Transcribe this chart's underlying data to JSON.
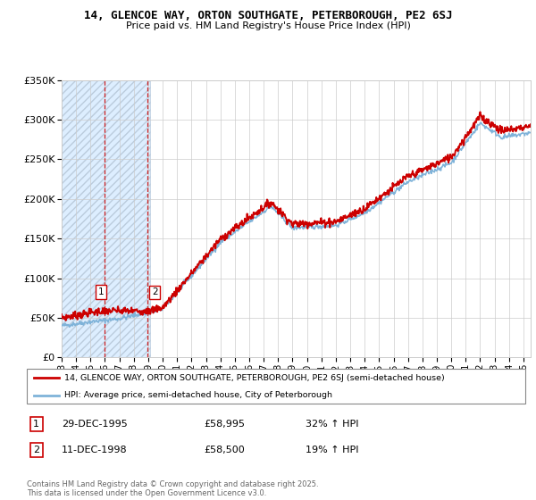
{
  "title1": "14, GLENCOE WAY, ORTON SOUTHGATE, PETERBOROUGH, PE2 6SJ",
  "title2": "Price paid vs. HM Land Registry's House Price Index (HPI)",
  "legend_line1": "14, GLENCOE WAY, ORTON SOUTHGATE, PETERBOROUGH, PE2 6SJ (semi-detached house)",
  "legend_line2": "HPI: Average price, semi-detached house, City of Peterborough",
  "table_rows": [
    {
      "num": "1",
      "date": "29-DEC-1995",
      "price": "£58,995",
      "hpi": "32% ↑ HPI"
    },
    {
      "num": "2",
      "date": "11-DEC-1998",
      "price": "£58,500",
      "hpi": "19% ↑ HPI"
    }
  ],
  "footnote": "Contains HM Land Registry data © Crown copyright and database right 2025.\nThis data is licensed under the Open Government Licence v3.0.",
  "sale1_date": 1995.99,
  "sale1_price": 58995,
  "sale2_date": 1998.95,
  "sale2_price": 58500,
  "plot_color_red": "#cc0000",
  "plot_color_blue": "#7fb3d9",
  "hatch_face_color": "#ddeeff",
  "hatch_edge_color": "#bbccdd",
  "ylabel_max": 350000,
  "xmin": 1993,
  "xmax": 2025.5,
  "yticks": [
    0,
    50000,
    100000,
    150000,
    200000,
    250000,
    300000,
    350000
  ],
  "ytick_labels": [
    "£0",
    "£50K",
    "£100K",
    "£150K",
    "£200K",
    "£250K",
    "£300K",
    "£350K"
  ]
}
